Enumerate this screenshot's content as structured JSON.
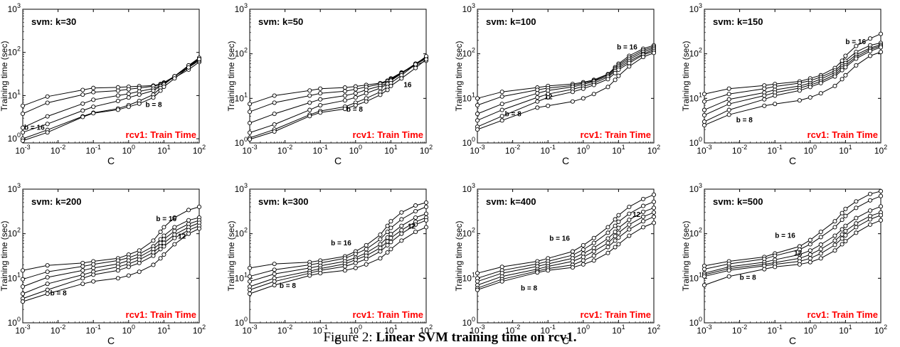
{
  "figure": {
    "caption_prefix": "Figure 2: ",
    "caption_bold": "Linear SVM training time on rcv1."
  },
  "shared_axes": {
    "xlabel": "C",
    "ylabel": "Training time (sec)",
    "xscale": "log",
    "yscale": "log",
    "xlim": [
      0.001,
      100
    ],
    "x_ticks": [
      0.001,
      0.01,
      0.1,
      1,
      10,
      100
    ],
    "x_tick_labels": [
      {
        "base": "10",
        "exp": "-3"
      },
      {
        "base": "10",
        "exp": "-2"
      },
      {
        "base": "10",
        "exp": "-1"
      },
      {
        "base": "10",
        "exp": "0"
      },
      {
        "base": "10",
        "exp": "1"
      },
      {
        "base": "10",
        "exp": "2"
      }
    ],
    "y_tick_labels": {
      "0": {
        "base": "10",
        "exp": "0"
      },
      "1": {
        "base": "10",
        "exp": "1"
      },
      "2": {
        "base": "10",
        "exp": "2"
      },
      "3": {
        "base": "10",
        "exp": "3"
      }
    },
    "corner_label": "rcv1: Train Time",
    "corner_label_color": "#ff0000",
    "line_color": "#000000",
    "marker": "open-circle"
  },
  "chart_data": [
    {
      "type": "line",
      "title": "svm: k=30",
      "ylim": [
        0.8,
        1000
      ],
      "y_ticks": [
        1,
        10,
        100,
        1000
      ],
      "x": [
        0.001,
        0.005,
        0.05,
        0.1,
        0.5,
        1,
        2,
        5,
        8,
        10,
        20,
        50,
        100
      ],
      "series": [
        {
          "values": [
            5.8,
            9.5,
            13.5,
            15,
            15.5,
            16,
            16.5,
            17,
            18.5,
            20,
            26,
            40,
            60
          ]
        },
        {
          "values": [
            3.8,
            6.8,
            10.5,
            12,
            13,
            14,
            15,
            16.5,
            18,
            20,
            28,
            45,
            65
          ]
        },
        {
          "values": [
            1.8,
            3.3,
            6.5,
            8,
            10,
            11,
            12.5,
            14.5,
            17,
            19.5,
            28,
            48,
            70
          ]
        },
        {
          "values": [
            1.4,
            2.2,
            4.5,
            5.5,
            7.5,
            9,
            10.5,
            13,
            16.5,
            19,
            28,
            50,
            72
          ]
        },
        {
          "values": [
            1.0,
            1.6,
            3.3,
            4.0,
            5.0,
            6.0,
            7.5,
            10.5,
            15,
            18,
            28,
            50,
            75
          ]
        },
        {
          "values": [
            0.9,
            1.4,
            3.2,
            3.9,
            4.7,
            5.5,
            6.5,
            9.0,
            13,
            16,
            25,
            45,
            70
          ]
        }
      ],
      "annotations": [
        {
          "text": "b = 16",
          "x": 0.0011,
          "y": 1.6
        },
        {
          "text": "b = 8",
          "x": 3.0,
          "y": 5.4
        }
      ]
    },
    {
      "type": "line",
      "title": "svm: k=50",
      "ylim": [
        1,
        1000
      ],
      "y_ticks": [
        1,
        10,
        100,
        1000
      ],
      "x": [
        0.001,
        0.005,
        0.05,
        0.1,
        0.5,
        1,
        2,
        5,
        8,
        10,
        20,
        50,
        100
      ],
      "series": [
        {
          "values": [
            7.5,
            11.5,
            15,
            16.5,
            17.5,
            18.5,
            20,
            22,
            25,
            28,
            38,
            55,
            70
          ]
        },
        {
          "values": [
            5.0,
            8.0,
            11.5,
            13,
            14.5,
            16,
            18,
            21,
            24,
            27,
            38,
            58,
            78
          ]
        },
        {
          "values": [
            2.8,
            4.5,
            8.0,
            9.5,
            11.5,
            13,
            15.5,
            19,
            22,
            26,
            37,
            60,
            82
          ]
        },
        {
          "values": [
            1.7,
            2.6,
            5.5,
            7.0,
            9.0,
            10.5,
            13,
            17,
            21,
            25,
            36,
            60,
            85
          ]
        },
        {
          "values": [
            1.3,
            2.0,
            4.3,
            5.2,
            6.5,
            8.0,
            10,
            14,
            18,
            22,
            33,
            58,
            88
          ]
        },
        {
          "values": [
            1.2,
            1.8,
            4.0,
            4.8,
            5.8,
            7.0,
            8.5,
            12,
            15.5,
            19,
            28,
            48,
            75
          ]
        }
      ],
      "annotations": [
        {
          "text": "16",
          "x": 23,
          "y": 18
        },
        {
          "text": "b = 8",
          "x": 0.55,
          "y": 5.0
        }
      ]
    },
    {
      "type": "line",
      "title": "svm: k=100",
      "ylim": [
        1,
        1000
      ],
      "y_ticks": [
        1,
        10,
        100,
        1000
      ],
      "x": [
        0.001,
        0.005,
        0.05,
        0.1,
        0.5,
        1,
        2,
        5,
        8,
        10,
        20,
        50,
        100
      ],
      "series": [
        {
          "values": [
            10,
            14,
            17.5,
            19,
            21,
            23,
            26,
            35,
            50,
            60,
            90,
            130,
            155
          ]
        },
        {
          "values": [
            7.0,
            11,
            15.5,
            17,
            19.5,
            22,
            25,
            34,
            47,
            56,
            82,
            120,
            145
          ]
        },
        {
          "values": [
            4.5,
            7.5,
            13,
            15,
            18,
            20.5,
            24,
            32,
            44,
            52,
            75,
            110,
            135
          ]
        },
        {
          "values": [
            3.2,
            5.5,
            10.5,
            12.5,
            16,
            18.5,
            22,
            30,
            41,
            48,
            68,
            100,
            125
          ]
        },
        {
          "values": [
            2.3,
            4.0,
            8.5,
            10.5,
            14,
            16.5,
            20,
            27,
            37,
            44,
            62,
            95,
            115
          ]
        },
        {
          "values": [
            2.0,
            3.2,
            6.2,
            6.8,
            8.5,
            10,
            12.5,
            18,
            26,
            32,
            52,
            85,
            105
          ]
        }
      ],
      "annotations": [
        {
          "text": "b = 16",
          "x": 9,
          "y": 125
        },
        {
          "text": "12",
          "x": 0.08,
          "y": 9.5
        },
        {
          "text": "b = 8",
          "x": 0.006,
          "y": 4.0
        }
      ]
    },
    {
      "type": "line",
      "title": "svm: k=150",
      "ylim": [
        1,
        1000
      ],
      "y_ticks": [
        1,
        10,
        100,
        1000
      ],
      "x": [
        0.001,
        0.005,
        0.05,
        0.1,
        0.5,
        1,
        2,
        5,
        8,
        10,
        20,
        50,
        100
      ],
      "series": [
        {
          "values": [
            12.5,
            16.5,
            19.5,
            21,
            24,
            28,
            33,
            48,
            70,
            90,
            150,
            220,
            280
          ]
        },
        {
          "values": [
            8.5,
            12.5,
            16.5,
            18.5,
            22,
            25,
            30,
            42,
            58,
            70,
            110,
            155,
            175
          ]
        },
        {
          "values": [
            5.5,
            9.5,
            13.5,
            15.5,
            19,
            22,
            27,
            38,
            52,
            62,
            95,
            135,
            160
          ]
        },
        {
          "values": [
            4.2,
            7.5,
            11.5,
            13.5,
            17,
            20,
            24,
            34,
            47,
            55,
            85,
            125,
            150
          ]
        },
        {
          "values": [
            3.0,
            5.5,
            9.5,
            11.5,
            15,
            18,
            22,
            31,
            43,
            50,
            78,
            115,
            140
          ]
        },
        {
          "values": [
            2.5,
            4.3,
            6.8,
            7.5,
            9.0,
            10.5,
            13,
            19,
            27,
            33,
            55,
            90,
            110
          ]
        }
      ],
      "annotations": [
        {
          "text": "b = 16",
          "x": 10,
          "y": 165
        },
        {
          "text": "b = 8",
          "x": 0.008,
          "y": 2.9
        }
      ]
    },
    {
      "type": "line",
      "title": "svm: k=200",
      "ylim": [
        1,
        1000
      ],
      "y_ticks": [
        1,
        10,
        100,
        1000
      ],
      "x": [
        0.001,
        0.005,
        0.05,
        0.1,
        0.5,
        1,
        2,
        5,
        8,
        10,
        20,
        50,
        100
      ],
      "series": [
        {
          "values": [
            15,
            19.5,
            22,
            24,
            28,
            34,
            42,
            70,
            110,
            140,
            230,
            340,
            400
          ]
        },
        {
          "values": [
            9.5,
            14,
            18.5,
            20.5,
            25,
            29,
            35,
            52,
            75,
            90,
            140,
            200,
            230
          ]
        },
        {
          "values": [
            6.5,
            10.5,
            15,
            17,
            21,
            25,
            30,
            45,
            62,
            75,
            115,
            165,
            200
          ]
        },
        {
          "values": [
            4.5,
            7.5,
            12,
            14,
            18,
            21,
            26,
            38,
            52,
            62,
            95,
            140,
            175
          ]
        },
        {
          "values": [
            3.5,
            5.5,
            10,
            12,
            15,
            18,
            22,
            32,
            45,
            52,
            80,
            120,
            150
          ]
        },
        {
          "values": [
            3.0,
            4.5,
            7.5,
            8.5,
            10,
            11.5,
            14,
            20,
            28,
            34,
            58,
            100,
            130
          ]
        }
      ],
      "annotations": [
        {
          "text": "b = 16",
          "x": 6,
          "y": 190
        },
        {
          "text": "12",
          "x": 25,
          "y": 78
        },
        {
          "text": "b = 8",
          "x": 0.006,
          "y": 4.1
        }
      ]
    },
    {
      "type": "line",
      "title": "svm: k=300",
      "ylim": [
        1,
        1000
      ],
      "y_ticks": [
        1,
        10,
        100,
        1000
      ],
      "x": [
        0.001,
        0.005,
        0.05,
        0.1,
        0.5,
        1,
        2,
        5,
        8,
        10,
        20,
        50,
        100
      ],
      "series": [
        {
          "values": [
            17,
            21,
            23,
            25,
            31,
            40,
            55,
            95,
            150,
            190,
            300,
            430,
            500
          ]
        },
        {
          "values": [
            11,
            15.5,
            20,
            22,
            28,
            35,
            45,
            75,
            110,
            135,
            210,
            320,
            400
          ]
        },
        {
          "values": [
            8.5,
            12.5,
            17,
            19,
            24,
            29,
            37,
            58,
            82,
            98,
            150,
            230,
            280
          ]
        },
        {
          "values": [
            6.5,
            10,
            14.5,
            16.5,
            21,
            26,
            32,
            48,
            67,
            80,
            120,
            185,
            230
          ]
        },
        {
          "values": [
            5.5,
            8.5,
            13,
            15,
            18.5,
            22,
            27,
            40,
            55,
            65,
            100,
            160,
            200
          ]
        },
        {
          "values": [
            4.5,
            7.0,
            11.5,
            13,
            15,
            17,
            20.5,
            28,
            38,
            45,
            70,
            110,
            140
          ]
        }
      ],
      "annotations": [
        {
          "text": "b = 16",
          "x": 0.2,
          "y": 55
        },
        {
          "text": "12",
          "x": 30,
          "y": 130
        },
        {
          "text": "b = 8",
          "x": 0.007,
          "y": 6.0
        }
      ]
    },
    {
      "type": "line",
      "title": "svm: k=400",
      "ylim": [
        1,
        1000
      ],
      "y_ticks": [
        1,
        10,
        100,
        1000
      ],
      "x": [
        0.001,
        0.005,
        0.05,
        0.1,
        0.5,
        1,
        2,
        5,
        8,
        10,
        20,
        50,
        100
      ],
      "series": [
        {
          "values": [
            13,
            18,
            24,
            28,
            40,
            55,
            80,
            140,
            210,
            260,
            400,
            600,
            750
          ]
        },
        {
          "values": [
            10,
            15,
            21,
            24,
            33,
            44,
            62,
            105,
            150,
            185,
            280,
            420,
            520
          ]
        },
        {
          "values": [
            8.5,
            13,
            18.5,
            21,
            28,
            36,
            48,
            78,
            110,
            135,
            205,
            310,
            380
          ]
        },
        {
          "values": [
            7.0,
            11,
            16,
            18.5,
            24,
            30,
            40,
            62,
            88,
            105,
            160,
            240,
            300
          ]
        },
        {
          "values": [
            6.0,
            9.5,
            14.5,
            16.5,
            20,
            25,
            32,
            50,
            70,
            82,
            125,
            190,
            240
          ]
        },
        {
          "values": [
            5.5,
            8.5,
            13.5,
            15,
            17.5,
            20.5,
            25,
            37,
            50,
            58,
            90,
            140,
            175
          ]
        }
      ],
      "annotations": [
        {
          "text": "b = 16",
          "x": 0.11,
          "y": 70
        },
        {
          "text": "12",
          "x": 25,
          "y": 240
        },
        {
          "text": "b = 8",
          "x": 0.017,
          "y": 5.3
        }
      ]
    },
    {
      "type": "line",
      "title": "svm: k=500",
      "ylim": [
        1,
        1000
      ],
      "y_ticks": [
        1,
        10,
        100,
        1000
      ],
      "x": [
        0.001,
        0.005,
        0.05,
        0.1,
        0.5,
        1,
        2,
        5,
        8,
        10,
        20,
        50,
        100
      ],
      "series": [
        {
          "values": [
            19,
            24,
            30,
            36,
            52,
            72,
            110,
            190,
            290,
            360,
            530,
            780,
            900
          ]
        },
        {
          "values": [
            16,
            21,
            27,
            32,
            44,
            58,
            84,
            140,
            205,
            250,
            380,
            560,
            700
          ]
        },
        {
          "values": [
            13,
            18,
            23,
            26,
            34,
            42,
            57,
            90,
            125,
            150,
            225,
            330,
            410
          ]
        },
        {
          "values": [
            12,
            16.5,
            20.5,
            22.5,
            28,
            34,
            45,
            70,
            96,
            115,
            170,
            250,
            300
          ]
        },
        {
          "values": [
            11,
            15,
            19,
            20.5,
            24,
            28,
            36,
            56,
            78,
            92,
            140,
            210,
            260
          ]
        },
        {
          "values": [
            7.0,
            11,
            16,
            18,
            20.5,
            23,
            28,
            42,
            58,
            68,
            105,
            160,
            200
          ]
        }
      ],
      "annotations": [
        {
          "text": "b = 16",
          "x": 0.1,
          "y": 80
        },
        {
          "text": "12",
          "x": 0.35,
          "y": 33
        },
        {
          "text": "b = 8",
          "x": 0.01,
          "y": 9.2
        }
      ]
    }
  ]
}
